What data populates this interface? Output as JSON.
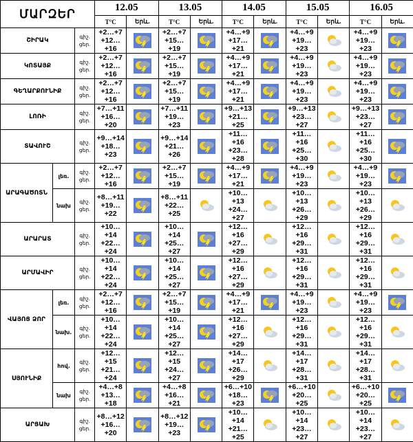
{
  "header": {
    "title": "ՄԱՐԶԵՐ",
    "dates": [
      "12.05",
      "13.05",
      "14.05",
      "15.05",
      "16.05"
    ],
    "temp_label": "T°C",
    "phenomenon_label": "Երև."
  },
  "night_label": "գիշ.",
  "day_label": "ցեր.",
  "regions": [
    {
      "name": "ՇԻՐԱԿ",
      "zones": [
        {
          "forecasts": [
            {
              "night": "+2…+7",
              "day": "+12…+16"
            },
            {
              "night": "+2…+7",
              "day": "+15…+19"
            },
            {
              "night": "+4…+9",
              "day": "+17…+21"
            },
            {
              "night": "+4…+9",
              "day": "+19…+23"
            },
            {
              "night": "+4…+9",
              "day": "+19…+23"
            }
          ]
        }
      ]
    },
    {
      "name": "ԿՈՏԱՅՔ",
      "zones": [
        {
          "forecasts": [
            {
              "night": "+2…+7",
              "day": "+12…+16"
            },
            {
              "night": "+2…+7",
              "day": "+15…+19"
            },
            {
              "night": "+4…+9",
              "day": "+17…+21"
            },
            {
              "night": "+4…+9",
              "day": "+19…+23"
            },
            {
              "night": "+4…+9",
              "day": "+19…+23"
            }
          ]
        }
      ]
    },
    {
      "name": "ԳԵՂԱՐՔՈՒՆԻՔ",
      "zones": [
        {
          "forecasts": [
            {
              "night": "+2…+7",
              "day": "+12…+16"
            },
            {
              "night": "+2…+7",
              "day": "+15…+19"
            },
            {
              "night": "+4…+9",
              "day": "+17…+21"
            },
            {
              "night": "+4…+9",
              "day": "+19…+23"
            },
            {
              "night": "+4…+9",
              "day": "+19…+23"
            }
          ]
        }
      ]
    },
    {
      "name": "ԼՈՌԻ",
      "zones": [
        {
          "forecasts": [
            {
              "night": "+7…+11",
              "day": "+16…+20"
            },
            {
              "night": "+7…+11",
              "day": "+19…+23"
            },
            {
              "night": "+9…+13",
              "day": "+21…+25"
            },
            {
              "night": "+9…+13",
              "day": "+23…+27"
            },
            {
              "night": "+9…+13",
              "day": "+23…+27"
            }
          ]
        }
      ]
    },
    {
      "name": "ՏԱՎՈՒՇ",
      "zones": [
        {
          "forecasts": [
            {
              "night": "+9…+14",
              "day": "+18…+23"
            },
            {
              "night": "+9…+14",
              "day": "+21…+26"
            },
            {
              "night": "+11…+16",
              "day": "+23…+28"
            },
            {
              "night": "+11…+16",
              "day": "+25…+30"
            },
            {
              "night": "+11…+16",
              "day": "+25…+30"
            }
          ]
        }
      ]
    },
    {
      "name": "ԱՐԱԳԱԾՈՏՆ",
      "zones": [
        {
          "name": "լեռ.",
          "forecasts": [
            {
              "night": "+2…+7",
              "day": "+12…+16"
            },
            {
              "night": "+2…+7",
              "day": "+15…+19"
            },
            {
              "night": "+4…+9",
              "day": "+17…+21"
            },
            {
              "night": "+4…+9",
              "day": "+19…+23"
            },
            {
              "night": "+4…+9",
              "day": "+19…+23"
            }
          ]
        },
        {
          "name": "նախ",
          "forecasts": [
            {
              "night": "+8…+11",
              "day": "+19…+22"
            },
            {
              "night": "+8…+11",
              "day": "+22…+25"
            },
            {
              "night": "+10…+13",
              "day": "+24…+27"
            },
            {
              "night": "+10…+13",
              "day": "+26…+29"
            },
            {
              "night": "+10…+13",
              "day": "+26…+29"
            }
          ]
        }
      ]
    },
    {
      "name": "ԱՐԱՐԱՏ",
      "zones": [
        {
          "forecasts": [
            {
              "night": "+10…+14",
              "day": "+22…+24"
            },
            {
              "night": "+10…+14",
              "day": "+25…+27"
            },
            {
              "night": "+12…+16",
              "day": "+27…+29"
            },
            {
              "night": "+12…+16",
              "day": "+29…+31"
            },
            {
              "night": "+12…+16",
              "day": "+29…+31"
            }
          ]
        }
      ]
    },
    {
      "name": "ԱՐՄԱՎԻՐ",
      "zones": [
        {
          "forecasts": [
            {
              "night": "+10…+14",
              "day": "+22…+24"
            },
            {
              "night": "+10…+14",
              "day": "+25…+27"
            },
            {
              "night": "+12…+16",
              "day": "+27…+29"
            },
            {
              "night": "+12…+16",
              "day": "+29…+31"
            },
            {
              "night": "+12…+16",
              "day": "+29…+31"
            }
          ]
        }
      ]
    },
    {
      "name": "ՎԱՅՈՑ ՁՈՐ",
      "zones": [
        {
          "name": "լեռ.",
          "forecasts": [
            {
              "night": "+2…+7",
              "day": "+12…+16"
            },
            {
              "night": "+2…+7",
              "day": "+15…+19"
            },
            {
              "night": "+4…+9",
              "day": "+17…+21"
            },
            {
              "night": "+4…+9",
              "day": "+19…+23"
            },
            {
              "night": "+4…+9",
              "day": "+19…+23"
            }
          ]
        },
        {
          "name": "նախ.",
          "forecasts": [
            {
              "night": "+10…+14",
              "day": "+22…+24"
            },
            {
              "night": "+10…+14",
              "day": "+25…+27"
            },
            {
              "night": "+12…+16",
              "day": "+27…+29"
            },
            {
              "night": "+12…+16",
              "day": "+29…+31"
            },
            {
              "night": "+12…+16",
              "day": "+29…+31"
            }
          ]
        }
      ]
    },
    {
      "name": "ՍՅՈՒՆԻՔ",
      "zones": [
        {
          "name": "հով.",
          "forecasts": [
            {
              "night": "+12…+15",
              "day": "+21…+24"
            },
            {
              "night": "+12…+15",
              "day": "+24…+27"
            },
            {
              "night": "+14…+17",
              "day": "+26…+29"
            },
            {
              "night": "+14…+17",
              "day": "+28…+31"
            },
            {
              "night": "+14…+17",
              "day": "+28…+31"
            }
          ]
        },
        {
          "name": "նախ",
          "forecasts": [
            {
              "night": "+4…+8",
              "day": "+13…+18"
            },
            {
              "night": "+4…+8",
              "day": "+16…+21"
            },
            {
              "night": "+6…+10",
              "day": "+18…+23"
            },
            {
              "night": "+6…+10",
              "day": "+20…+25"
            },
            {
              "night": "+6…+10",
              "day": "+20…+25"
            }
          ]
        }
      ]
    },
    {
      "name": "ԱՐՑԱԽ",
      "zones": [
        {
          "forecasts": [
            {
              "night": "+8…+12",
              "day": "+16…+20"
            },
            {
              "night": "+8…+12",
              "day": "+19…+23"
            },
            {
              "night": "+10…+14",
              "day": "+21…+25"
            },
            {
              "night": "+10…+14",
              "day": "+23…+27"
            },
            {
              "night": "+10…+14",
              "day": "+23…+27"
            }
          ]
        }
      ]
    }
  ]
}
